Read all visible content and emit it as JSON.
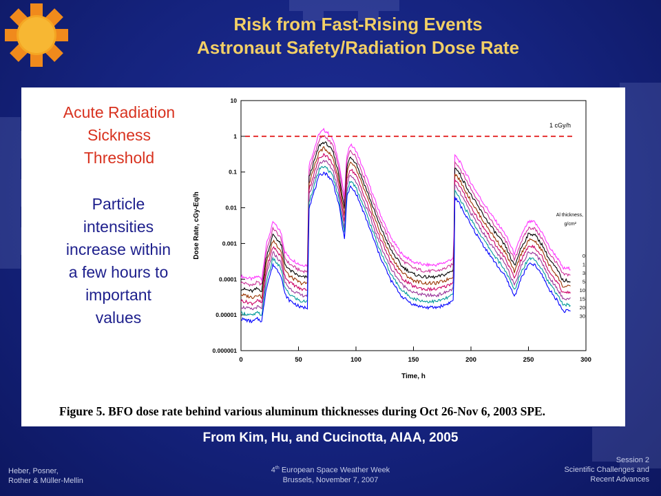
{
  "header": {
    "title_line1": "Risk from Fast-Rising Events",
    "title_line2": "Astronaut Safety/Radiation Dose Rate"
  },
  "side_text": {
    "threshold_label": [
      "Acute Radiation",
      "Sickness",
      "Threshold"
    ],
    "description": [
      "Particle",
      "intensities",
      "increase within",
      "a few hours to",
      "important",
      "values"
    ]
  },
  "figure_caption": "Figure 5.  BFO dose rate behind various aluminum thicknesses during Oct 26-Nov 6, 2003 SPE.",
  "source": "From Kim, Hu, and Cucinotta, AIAA, 2005",
  "footer": {
    "left": [
      "Heber, Posner,",
      "Rother & Müller-Mellin"
    ],
    "center_line1": "European Space Weather Week",
    "center_ordinal_num": "4",
    "center_ordinal_sup": "th",
    "center_line2": "Brussels, November 7, 2007",
    "right": [
      "Session 2",
      "Scientific Challenges and",
      "Recent Advances"
    ]
  },
  "colors": {
    "title": "#f2cf66",
    "threshold_text": "#d8321f",
    "description_text": "#1d1f8c",
    "threshold_line": "#e53030"
  },
  "chart_data": {
    "type": "line",
    "xlabel": "Time, h",
    "ylabel": "Dose Rate, cGy-Eq/h",
    "xlim": [
      0,
      300
    ],
    "ylim": [
      1e-06,
      10
    ],
    "yscale": "log",
    "x_ticks": [
      0,
      50,
      100,
      150,
      200,
      250,
      300
    ],
    "y_tick_labels": [
      "0.000001",
      "0.00001",
      "0.0001",
      "0.001",
      "0.01",
      "0.1",
      "1",
      "10"
    ],
    "threshold": {
      "value": 1,
      "label": "1 cGy/h",
      "style": "dashed",
      "color": "#e53030"
    },
    "legend_title": "Al thickness, g/cm²",
    "legend_labels": [
      "0",
      "1",
      "3",
      "5",
      "10",
      "15",
      "20",
      "30"
    ],
    "series_colors": [
      "#ff33ff",
      "#cc3399",
      "#000000",
      "#993300",
      "#cc0066",
      "#993399",
      "#009999",
      "#0000ff"
    ],
    "series_offsets_log10": [
      0,
      -0.17,
      -0.34,
      -0.51,
      -0.68,
      -0.85,
      -1.02,
      -1.19
    ],
    "base_curve": {
      "x": [
        0,
        5,
        10,
        14,
        17,
        18,
        22,
        28,
        35,
        38,
        42,
        48,
        52,
        55,
        58,
        59,
        62,
        68,
        72,
        75,
        80,
        85,
        88,
        90,
        92,
        95,
        100,
        110,
        120,
        130,
        140,
        150,
        160,
        170,
        178,
        182,
        185,
        186,
        190,
        195,
        200,
        210,
        220,
        230,
        238,
        243,
        250,
        255,
        262,
        268,
        275,
        280,
        287
      ],
      "y": [
        0.00012,
        0.00011,
        0.0001,
        0.00012,
        0.00011,
        0.0001,
        0.0009,
        0.004,
        0.002,
        0.0006,
        0.0004,
        0.0003,
        0.00025,
        0.00025,
        0.00025,
        0.15,
        0.3,
        1.2,
        1.5,
        1.3,
        0.8,
        0.2,
        0.05,
        0.02,
        0.3,
        0.6,
        0.4,
        0.06,
        0.008,
        0.0015,
        0.0005,
        0.0003,
        0.00025,
        0.00025,
        0.0003,
        0.00035,
        0.0004,
        0.3,
        0.2,
        0.1,
        0.05,
        0.015,
        0.005,
        0.0018,
        0.0005,
        0.0015,
        0.004,
        0.004,
        0.002,
        0.0008,
        0.0004,
        0.0002,
        0.0002
      ]
    }
  }
}
